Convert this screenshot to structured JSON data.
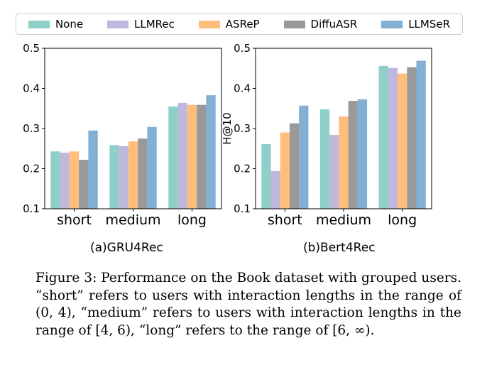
{
  "legend": [
    "None",
    "LLMRec",
    "ASReP",
    "DiffuASR",
    "LLMSeR"
  ],
  "colors": [
    "#8ecfc9",
    "#beb8dc",
    "#ffbe7a",
    "#999999",
    "#82afd3"
  ],
  "chart_data": [
    {
      "type": "bar",
      "title": "(a)GRU4Rec",
      "ylabel": "H@10",
      "xlabel": "",
      "categories": [
        "short",
        "medium",
        "long"
      ],
      "ylim": [
        0.1,
        0.5
      ],
      "yticks": [
        "0.1",
        "0.2",
        "0.3",
        "0.4",
        "0.5"
      ],
      "series": [
        {
          "name": "None",
          "values": [
            0.243,
            0.259,
            0.355
          ]
        },
        {
          "name": "LLMRec",
          "values": [
            0.24,
            0.256,
            0.364
          ]
        },
        {
          "name": "ASReP",
          "values": [
            0.243,
            0.268,
            0.359
          ]
        },
        {
          "name": "DiffuASR",
          "values": [
            0.222,
            0.275,
            0.359
          ]
        },
        {
          "name": "LLMSeR",
          "values": [
            0.295,
            0.304,
            0.383
          ]
        }
      ]
    },
    {
      "type": "bar",
      "title": "(b)Bert4Rec",
      "ylabel": "H@10",
      "xlabel": "",
      "categories": [
        "short",
        "medium",
        "long"
      ],
      "ylim": [
        0.1,
        0.5
      ],
      "yticks": [
        "0.1",
        "0.2",
        "0.3",
        "0.4",
        "0.5"
      ],
      "series": [
        {
          "name": "None",
          "values": [
            0.261,
            0.348,
            0.456
          ]
        },
        {
          "name": "LLMRec",
          "values": [
            0.194,
            0.284,
            0.451
          ]
        },
        {
          "name": "ASReP",
          "values": [
            0.29,
            0.33,
            0.437
          ]
        },
        {
          "name": "DiffuASR",
          "values": [
            0.313,
            0.369,
            0.453
          ]
        },
        {
          "name": "LLMSeR",
          "values": [
            0.357,
            0.373,
            0.469
          ]
        }
      ]
    }
  ],
  "caption": "Figure 3:  Performance on the Book dataset with grouped users. “short” refers to users with interaction lengths in the range of (0, 4), “medium” refers to users with interaction lengths in the range of [4, 6), “long” refers to the range of [6, ∞)."
}
